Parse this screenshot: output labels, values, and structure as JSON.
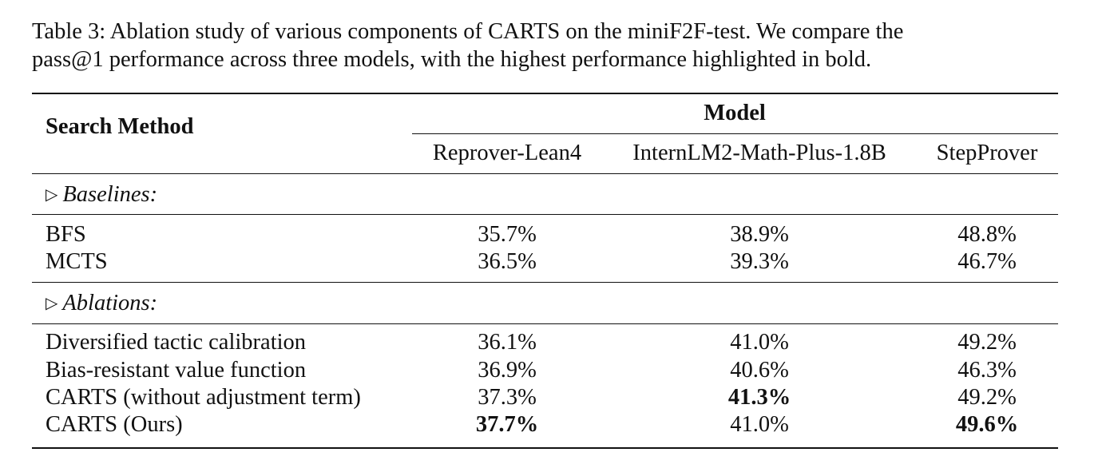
{
  "caption": {
    "line1": "Table 3:  Ablation study of various components of CARTS on the miniF2F-test.  We compare the",
    "line2": "pass@1 performance across three models, with the highest performance highlighted in bold."
  },
  "table": {
    "row_header": "Search Method",
    "group_header": "Model",
    "columns": [
      "Reprover-Lean4",
      "InternLM2-Math-Plus-1.8B",
      "StepProver"
    ],
    "sections": [
      {
        "marker": "▷",
        "title": "Baselines:",
        "rows": [
          {
            "method": "BFS",
            "values": [
              "35.7%",
              "38.9%",
              "48.8%"
            ]
          },
          {
            "method": "MCTS",
            "values": [
              "36.5%",
              "39.3%",
              "46.7%"
            ]
          }
        ]
      },
      {
        "marker": "▷",
        "title": "Ablations:",
        "rows": [
          {
            "method": "Diversified tactic calibration",
            "values": [
              "36.1%",
              "41.0%",
              "49.2%"
            ]
          },
          {
            "method": "Bias-resistant value function",
            "values": [
              "36.9%",
              "40.6%",
              "46.3%"
            ]
          },
          {
            "method": "CARTS (without adjustment term)",
            "values": [
              "37.3%",
              "41.3%",
              "49.2%"
            ]
          },
          {
            "method": "CARTS (Ours)",
            "values": [
              "37.7%",
              "41.0%",
              "49.6%"
            ]
          }
        ]
      }
    ],
    "bold_cells": [
      [
        1,
        3,
        1
      ],
      [
        1,
        2,
        1
      ],
      [
        1,
        3,
        2
      ]
    ]
  }
}
